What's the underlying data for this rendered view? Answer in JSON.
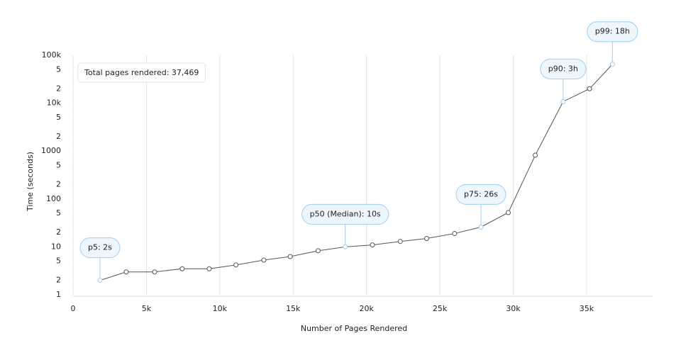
{
  "chart_data": {
    "type": "line",
    "x_label": "Number of Pages Rendered",
    "y_label": "Time (seconds)",
    "note": "Total pages rendered: 37,469",
    "x": [
      1835,
      3620,
      5560,
      7440,
      9280,
      11100,
      13000,
      14800,
      16700,
      18550,
      20400,
      22300,
      24100,
      26000,
      27800,
      29660,
      31500,
      33400,
      35200,
      36760
    ],
    "values": [
      2,
      3,
      3,
      3.5,
      3.5,
      4.2,
      5.3,
      6.3,
      8.3,
      10,
      11,
      13,
      15,
      19,
      26,
      52,
      820,
      10800,
      20000,
      64800
    ],
    "color": "#555555",
    "highlight_color": "#9fcfef",
    "annotations": [
      {
        "label": "p5: 2s",
        "x": 1835,
        "y": 2
      },
      {
        "label": "p50 (Median): 10s",
        "x": 18550,
        "y": 10
      },
      {
        "label": "p75: 26s",
        "x": 27800,
        "y": 26
      },
      {
        "label": "p90: 3h",
        "x": 33400,
        "y": 10800
      },
      {
        "label": "p99: 18h",
        "x": 36760,
        "y": 64800
      }
    ],
    "xlim": [
      0,
      39500
    ],
    "xticks": [
      0,
      {
        "value": 5000,
        "label": "5k"
      },
      {
        "value": 10000,
        "label": "10k"
      },
      {
        "value": 15000,
        "label": "15k"
      },
      {
        "value": 20000,
        "label": "20k"
      },
      {
        "value": 25000,
        "label": "25k"
      },
      {
        "value": 30000,
        "label": "30k"
      },
      {
        "value": 35000,
        "label": "35k"
      }
    ],
    "ylim": [
      1,
      100000
    ],
    "y_log": true,
    "yticks": [
      1,
      2,
      5,
      10,
      {
        "value": 20,
        "label": "2"
      },
      {
        "value": 50,
        "label": "5"
      },
      100,
      {
        "value": 200,
        "label": "2"
      },
      {
        "value": 500,
        "label": "5"
      },
      1000,
      {
        "value": 2000,
        "label": "2"
      },
      {
        "value": 5000,
        "label": "5"
      },
      {
        "value": 10000,
        "label": "10k"
      },
      {
        "value": 20000,
        "label": "2"
      },
      {
        "value": 50000,
        "label": "5"
      },
      {
        "value": 100000,
        "label": "100k"
      }
    ],
    "grid": true
  }
}
